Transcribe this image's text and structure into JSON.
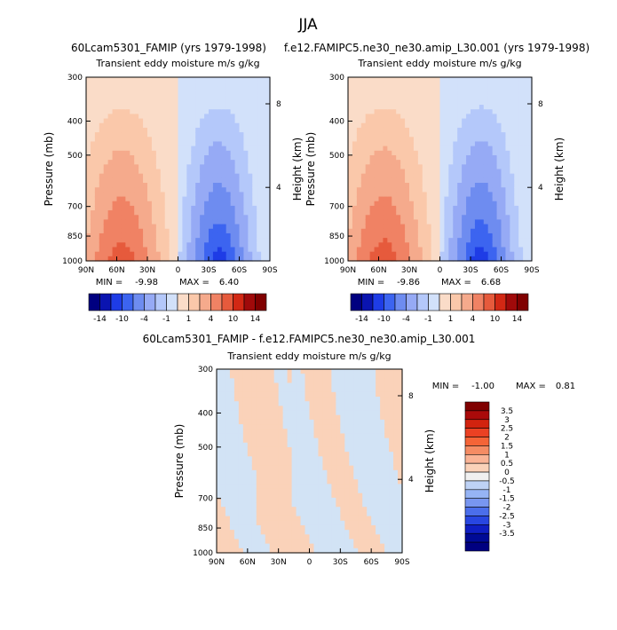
{
  "season_title": "JJA",
  "chart_data": [
    {
      "type": "heatmap",
      "title": "60Lcam5301_FAMIP (yrs 1979-1998)",
      "subtitle": "Transient eddy moisture m/s g/kg",
      "xlabel": "",
      "ylabel": "Pressure (mb)",
      "y2label": "Height (km)",
      "x_ticks": [
        "90N",
        "60N",
        "30N",
        "0",
        "30S",
        "60S",
        "90S"
      ],
      "y_ticks": [
        "300",
        "400",
        "500",
        "700",
        "850",
        "1000"
      ],
      "y2_ticks": [
        "8",
        "4"
      ],
      "ylim": [
        1000,
        300
      ],
      "min_text": "MIN =",
      "min_value": "-9.98",
      "max_text": "MAX =",
      "max_value": "6.40",
      "colorbar_labels": [
        "-14",
        "-10",
        "-4",
        "-1",
        "1",
        "4",
        "10",
        "14"
      ],
      "levels": [
        -14,
        -12,
        -10,
        -7,
        -4,
        -2,
        -1,
        0,
        1,
        2,
        4,
        7,
        10,
        12,
        14
      ],
      "colorbar_colors": [
        "#000080",
        "#0a14b0",
        "#1e3ce6",
        "#3c64f0",
        "#6e8cf0",
        "#96aaf5",
        "#b4c8fa",
        "#d2e1fa",
        "#fadcc8",
        "#fac8aa",
        "#f5aa8c",
        "#f08264",
        "#e65a3c",
        "#d22814",
        "#a00a0a",
        "#800000"
      ]
    },
    {
      "type": "heatmap",
      "title": "f.e12.FAMIPC5.ne30_ne30.amip_L30.001 (yrs 1979-1998)",
      "subtitle": "Transient eddy moisture m/s g/kg",
      "xlabel": "",
      "ylabel": "Pressure (mb)",
      "y2label": "Height (km)",
      "x_ticks": [
        "90N",
        "60N",
        "30N",
        "0",
        "30S",
        "60S",
        "90S"
      ],
      "y_ticks": [
        "300",
        "400",
        "500",
        "700",
        "850",
        "1000"
      ],
      "y2_ticks": [
        "8",
        "4"
      ],
      "ylim": [
        1000,
        300
      ],
      "min_text": "MIN =",
      "min_value": "-9.86",
      "max_text": "MAX =",
      "max_value": "6.68",
      "colorbar_labels": [
        "-14",
        "-10",
        "-4",
        "-1",
        "1",
        "4",
        "10",
        "14"
      ],
      "levels": [
        -14,
        -12,
        -10,
        -7,
        -4,
        -2,
        -1,
        0,
        1,
        2,
        4,
        7,
        10,
        12,
        14
      ],
      "colorbar_colors": [
        "#000080",
        "#0a14b0",
        "#1e3ce6",
        "#3c64f0",
        "#6e8cf0",
        "#96aaf5",
        "#b4c8fa",
        "#d2e1fa",
        "#fadcc8",
        "#fac8aa",
        "#f5aa8c",
        "#f08264",
        "#e65a3c",
        "#d22814",
        "#a00a0a",
        "#800000"
      ]
    },
    {
      "type": "heatmap",
      "title": "60Lcam5301_FAMIP - f.e12.FAMIPC5.ne30_ne30.amip_L30.001",
      "subtitle": "Transient eddy moisture m/s g/kg",
      "xlabel": "",
      "ylabel": "Pressure (mb)",
      "y2label": "Height (km)",
      "x_ticks": [
        "90N",
        "60N",
        "30N",
        "0",
        "30S",
        "60S",
        "90S"
      ],
      "y_ticks": [
        "300",
        "400",
        "500",
        "700",
        "850",
        "1000"
      ],
      "y2_ticks": [
        "8",
        "4"
      ],
      "ylim": [
        1000,
        300
      ],
      "min_text": "MIN =",
      "min_value": "-1.00",
      "max_text": "MAX =",
      "max_value": "0.81",
      "colorbar_labels": [
        "3.5",
        "3",
        "2.5",
        "2",
        "1.5",
        "1",
        "0.5",
        "0",
        "-0.5",
        "-1",
        "-1.5",
        "-2",
        "-2.5",
        "-3",
        "-3.5"
      ],
      "colorbar_colors": [
        "#800000",
        "#aa0a0a",
        "#d2230f",
        "#eb4123",
        "#f56437",
        "#f58c64",
        "#fab496",
        "#fad2b9",
        "#f0f0f0",
        "#bed2f5",
        "#96b4f5",
        "#7896f0",
        "#4b6eeb",
        "#2846e1",
        "#0f1ec3",
        "#000a96",
        "#000080"
      ]
    }
  ]
}
